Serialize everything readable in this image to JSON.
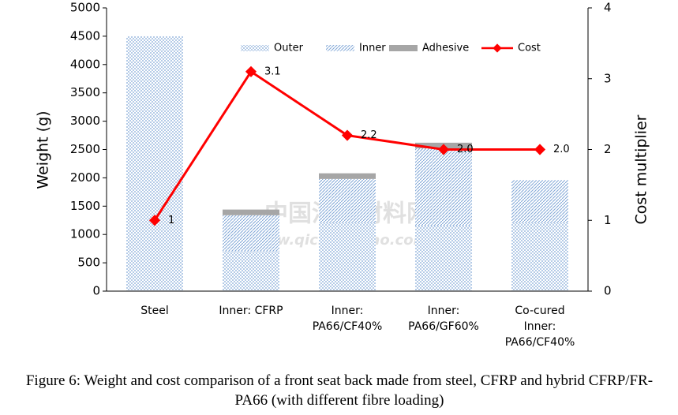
{
  "chart_data": {
    "type": "bar",
    "categories": [
      "Steel",
      "Inner: CFRP",
      "Inner:\nPA66/CF40%",
      "Inner:\nPA66/GF60%",
      "Co-cured\nInner:\nPA66/CF40%"
    ],
    "series": [
      {
        "name": "Outer",
        "color": "#7fa6d6",
        "values": [
          4500,
          700,
          1200,
          1150,
          1200
        ]
      },
      {
        "name": "Inner",
        "color": "#7fa6d6",
        "values": [
          0,
          640,
          780,
          1370,
          760
        ]
      },
      {
        "name": "Adhesive",
        "color": "#a6a6a6",
        "values": [
          0,
          100,
          100,
          100,
          0
        ]
      },
      {
        "name": "Cost",
        "color": "#ff0000",
        "axis": "y2",
        "type": "line",
        "values": [
          1,
          3.1,
          2.2,
          2,
          2
        ],
        "value_labels": [
          "1",
          "3.1",
          "2.2",
          "2.0",
          "2.0"
        ]
      }
    ],
    "ylabel": "Weight (g)",
    "y2label": "Cost  multiplier",
    "ylim": [
      0,
      5000
    ],
    "yticks": [
      0,
      500,
      1000,
      1500,
      2000,
      2500,
      3000,
      3500,
      4000,
      4500,
      5000
    ],
    "y2lim": [
      0,
      4
    ],
    "y2ticks": [
      0,
      1,
      2,
      3,
      4
    ],
    "legend": "top",
    "caption": "Figure 6: Weight and cost comparison of a front seat back made from steel, CFRP and hybrid CFRP/FR-PA66 (with different fibre loading)",
    "watermark": [
      "中国汽车材料网",
      "www.qichecailiao.com"
    ]
  }
}
